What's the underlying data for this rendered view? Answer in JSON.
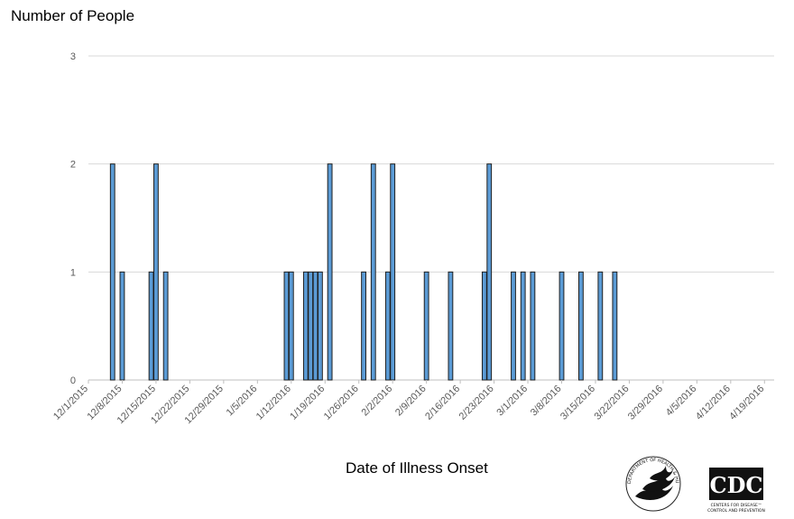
{
  "chart_data": {
    "type": "bar",
    "ylabel": "Number of People",
    "xlabel": "Date of Illness Onset",
    "ylim": [
      0,
      3
    ],
    "yticks": [
      0,
      1,
      2,
      3
    ],
    "grid": true,
    "legend": "none",
    "bar_color": "#5b9bd5",
    "bar_edge_color": "#1f1f1f",
    "x_start": "12/1/2015",
    "x_end": "4/21/2016",
    "xtick_labels": [
      "12/1/2015",
      "12/8/2015",
      "12/15/2015",
      "12/22/2015",
      "12/29/2015",
      "1/5/2016",
      "1/12/2016",
      "1/19/2016",
      "1/26/2016",
      "2/2/2016",
      "2/9/2016",
      "2/16/2016",
      "2/23/2016",
      "3/1/2016",
      "3/8/2016",
      "3/15/2016",
      "3/22/2016",
      "3/29/2016",
      "4/5/2016",
      "4/12/2016",
      "4/19/2016"
    ],
    "x": [
      "12/6/2015",
      "12/8/2015",
      "12/14/2015",
      "12/15/2015",
      "12/17/2015",
      "1/11/2016",
      "1/12/2016",
      "1/15/2016",
      "1/16/2016",
      "1/17/2016",
      "1/18/2016",
      "1/20/2016",
      "1/27/2016",
      "1/29/2016",
      "2/1/2016",
      "2/2/2016",
      "2/9/2016",
      "2/14/2016",
      "2/21/2016",
      "2/22/2016",
      "2/27/2016",
      "2/29/2016",
      "3/2/2016",
      "3/8/2016",
      "3/12/2016",
      "3/16/2016",
      "3/19/2016"
    ],
    "values": [
      2,
      1,
      1,
      2,
      1,
      1,
      1,
      1,
      1,
      1,
      1,
      2,
      1,
      2,
      1,
      2,
      1,
      1,
      1,
      2,
      1,
      1,
      1,
      1,
      1,
      1,
      1
    ]
  },
  "logos": {
    "hhs": "hhs-eagle-seal",
    "cdc": "cdc-logo",
    "hhs_text": "DEPARTMENT OF HEALTH & HUMAN SERVICES · USA",
    "cdc_text": "CDC",
    "cdc_subtext_1": "CENTERS FOR DISEASE™",
    "cdc_subtext_2": "CONTROL AND PREVENTION"
  }
}
